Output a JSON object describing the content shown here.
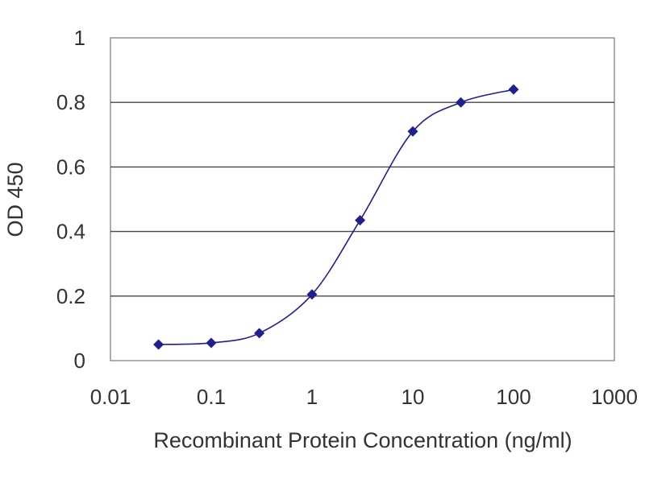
{
  "chart_data": {
    "type": "line",
    "title": "",
    "xlabel": "Recombinant Protein Concentration (ng/ml)",
    "ylabel": "OD 450",
    "x_scale": "log",
    "xlim": [
      0.01,
      1000
    ],
    "ylim": [
      0,
      1
    ],
    "x_ticks": [
      0.01,
      0.1,
      1,
      10,
      100,
      1000
    ],
    "x_tick_labels": [
      "0.01",
      "0.1",
      "1",
      "10",
      "100",
      "1000"
    ],
    "y_ticks": [
      0,
      0.2,
      0.4,
      0.6,
      0.8,
      1
    ],
    "y_tick_labels": [
      "0",
      "0.2",
      "0.4",
      "0.6",
      "0.8",
      "1"
    ],
    "grid": "horizontal",
    "legend": "none",
    "series": [
      {
        "x": [
          0.03,
          0.1,
          0.3,
          1,
          3,
          10,
          30,
          100
        ],
        "y": [
          0.05,
          0.055,
          0.085,
          0.205,
          0.435,
          0.71,
          0.8,
          0.84
        ]
      }
    ],
    "colors": {
      "series": "#1f1f8f",
      "grid": "#444444",
      "frame": "#777777",
      "text": "#333333"
    }
  }
}
